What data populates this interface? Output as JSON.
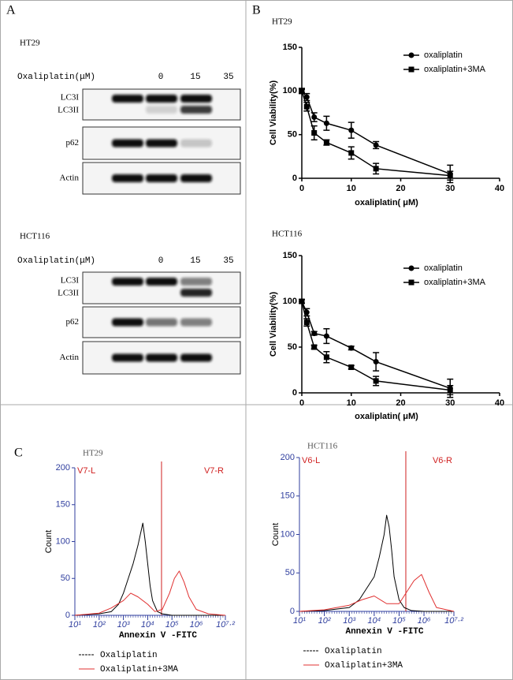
{
  "panel_labels": [
    "A",
    "B",
    "C"
  ],
  "blots": [
    {
      "cell_line": "HT29",
      "treatment_label": "Oxaliplatin(μM)",
      "doses": [
        "0",
        "15",
        "35"
      ],
      "rows": [
        [
          "LC3I",
          "LC3II"
        ],
        [
          "p62"
        ],
        [
          "Actin"
        ]
      ]
    },
    {
      "cell_line": "HCT116",
      "treatment_label": "Oxaliplatin(μM)",
      "doses": [
        "0",
        "15",
        "35"
      ],
      "rows": [
        [
          "LC3I",
          "LC3II"
        ],
        [
          "p62"
        ],
        [
          "Actin"
        ]
      ]
    }
  ],
  "chart_data": [
    {
      "type": "line",
      "title": "HT29",
      "y_label": "Cell Viability(%)",
      "x_label": "oxaliplatin( μM)",
      "x": [
        0,
        1,
        2.5,
        5,
        10,
        15,
        30
      ],
      "xlim": [
        0,
        40
      ],
      "xticks": [
        0,
        10,
        20,
        30,
        40
      ],
      "ylim": [
        0,
        150
      ],
      "yticks": [
        0,
        50,
        100,
        150
      ],
      "legend": "upper right",
      "series": [
        {
          "name": "oxaliplatin",
          "color": "#000000",
          "marker": "circle",
          "values": [
            100,
            93,
            70,
            63,
            55,
            38,
            5
          ],
          "errors": [
            3,
            4,
            5,
            8,
            9,
            4,
            10
          ]
        },
        {
          "name": "oxaliplatin+3MA",
          "color": "#000000",
          "marker": "square",
          "values": [
            100,
            82,
            52,
            41,
            29,
            11,
            3
          ],
          "errors": [
            2,
            5,
            8,
            3,
            7,
            6,
            5
          ]
        }
      ]
    },
    {
      "type": "line",
      "title": "HCT116",
      "y_label": "Cell Viability(%)",
      "x_label": "oxaliplatin( μM)",
      "x": [
        0,
        1,
        2.5,
        5,
        10,
        15,
        30
      ],
      "xlim": [
        0,
        40
      ],
      "xticks": [
        0,
        10,
        20,
        30,
        40
      ],
      "ylim": [
        0,
        150
      ],
      "yticks": [
        0,
        50,
        100,
        150
      ],
      "legend": "upper right",
      "series": [
        {
          "name": "oxaliplatin",
          "color": "#000000",
          "marker": "circle",
          "values": [
            100,
            88,
            65,
            62,
            49,
            34,
            5
          ],
          "errors": [
            2,
            4,
            2,
            8,
            2,
            10,
            10
          ]
        },
        {
          "name": "oxaliplatin+3MA",
          "color": "#000000",
          "marker": "square",
          "values": [
            100,
            77,
            50,
            39,
            28,
            13,
            3
          ],
          "errors": [
            2,
            4,
            2,
            6,
            2,
            5,
            5
          ]
        }
      ]
    },
    {
      "type": "histogram-line",
      "title": "HT29",
      "y_label": "Count",
      "x_label": "Annexin V -FITC",
      "gate_labels": [
        "V7-L",
        "V7-R"
      ],
      "gate_x": 4.57,
      "xlim": [
        1,
        7.2
      ],
      "xticks": [
        {
          "value": 1,
          "label": "10¹"
        },
        {
          "value": 2,
          "label": "10²"
        },
        {
          "value": 3,
          "label": "10³"
        },
        {
          "value": 4,
          "label": "10⁴"
        },
        {
          "value": 5,
          "label": "10⁵"
        },
        {
          "value": 6,
          "label": "10⁶"
        },
        {
          "value": 7.2,
          "label": "10⁷·²"
        }
      ],
      "ylim": [
        0,
        200
      ],
      "yticks": [
        0,
        50,
        100,
        150,
        200
      ],
      "series": [
        {
          "name": "Oxaliplatin",
          "color": "#000000",
          "x": [
            1,
            2,
            2.5,
            2.8,
            3,
            3.2,
            3.4,
            3.6,
            3.7,
            3.8,
            3.9,
            4.0,
            4.1,
            4.2,
            4.4,
            4.6,
            5,
            6,
            7.2
          ],
          "values": [
            0,
            2,
            5,
            15,
            30,
            50,
            70,
            95,
            110,
            125,
            100,
            70,
            40,
            20,
            5,
            2,
            0,
            0,
            0
          ]
        },
        {
          "name": "Oxaliplatin+3MA",
          "color": "#e03030",
          "x": [
            1,
            2,
            2.5,
            3,
            3.3,
            3.6,
            4,
            4.3,
            4.6,
            4.9,
            5.1,
            5.3,
            5.5,
            5.7,
            6,
            6.5,
            7.2
          ],
          "values": [
            0,
            3,
            10,
            20,
            30,
            25,
            15,
            5,
            8,
            30,
            50,
            60,
            45,
            25,
            8,
            2,
            0
          ]
        }
      ]
    },
    {
      "type": "histogram-line",
      "title": "HCT116",
      "y_label": "Count",
      "x_label": "Annexin V -FITC",
      "gate_labels": [
        "V6-L",
        "V6-R"
      ],
      "gate_x": 5.27,
      "xlim": [
        1,
        7.2
      ],
      "xticks": [
        {
          "value": 1,
          "label": "10¹"
        },
        {
          "value": 2,
          "label": "10²"
        },
        {
          "value": 3,
          "label": "10³"
        },
        {
          "value": 4,
          "label": "10⁴"
        },
        {
          "value": 5,
          "label": "10⁵"
        },
        {
          "value": 6,
          "label": "10⁶"
        },
        {
          "value": 7.2,
          "label": "10⁷·²"
        }
      ],
      "ylim": [
        0,
        200
      ],
      "yticks": [
        0,
        50,
        100,
        150,
        200
      ],
      "series": [
        {
          "name": "Oxaliplatin",
          "color": "#000000",
          "x": [
            1,
            2,
            3,
            3.4,
            3.7,
            4,
            4.2,
            4.4,
            4.5,
            4.6,
            4.7,
            4.8,
            5,
            5.2,
            5.5,
            6,
            7.2
          ],
          "values": [
            0,
            1,
            5,
            15,
            30,
            45,
            70,
            100,
            125,
            110,
            80,
            45,
            15,
            5,
            1,
            0,
            0
          ]
        },
        {
          "name": "Oxaliplatin+3MA",
          "color": "#e03030",
          "x": [
            1,
            2,
            3,
            3.5,
            4,
            4.5,
            5,
            5.3,
            5.6,
            5.9,
            6.2,
            6.5,
            7.2
          ],
          "values": [
            0,
            2,
            8,
            15,
            20,
            10,
            10,
            25,
            40,
            48,
            25,
            5,
            0
          ]
        }
      ]
    }
  ]
}
